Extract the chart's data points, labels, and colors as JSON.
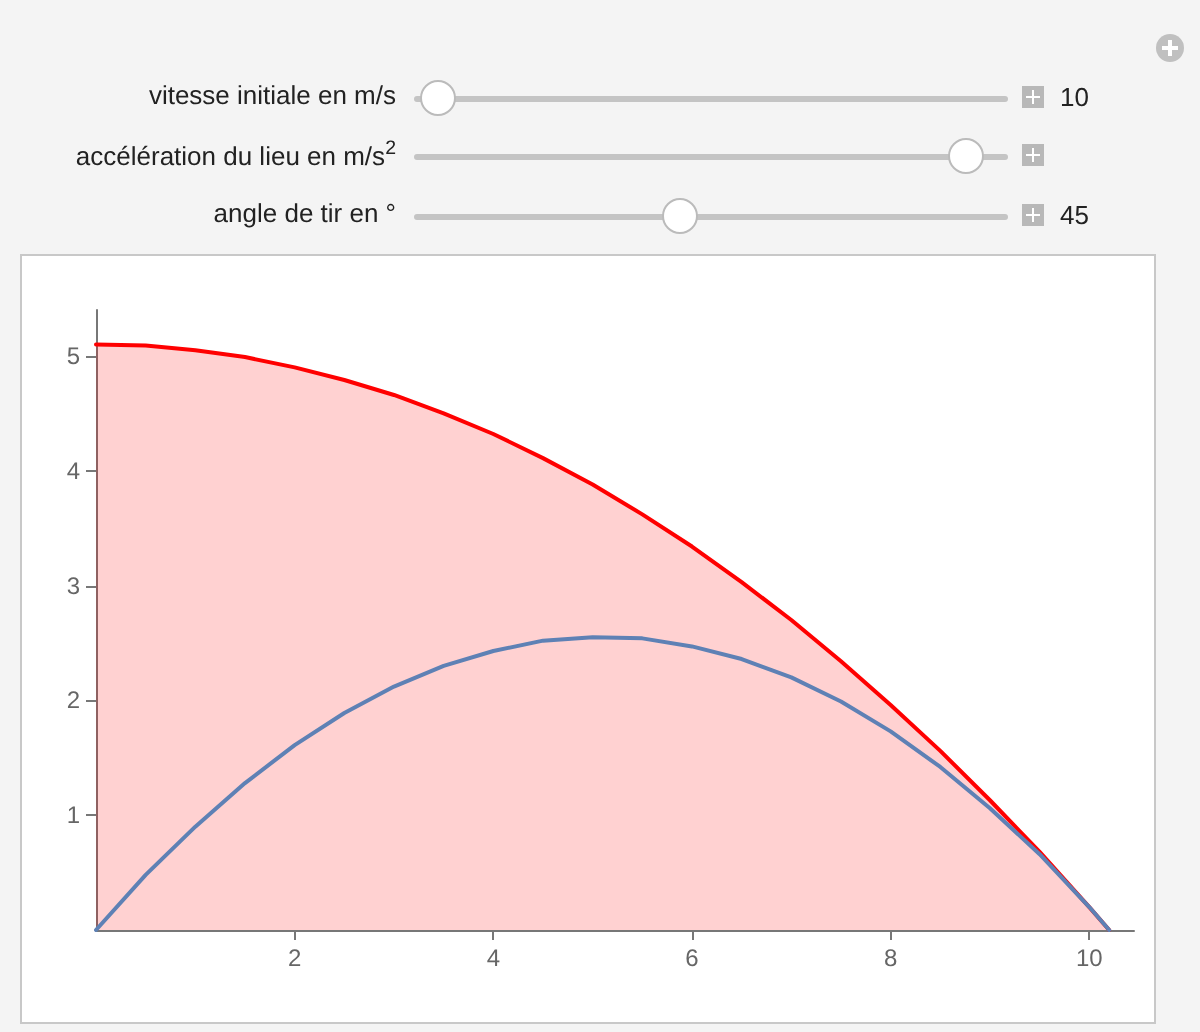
{
  "chart_data": {
    "type": "area",
    "annotations": [
      "vitesse initiale en m/s",
      "10",
      "accélération du lieu en m/s$^{2}$",
      "angle de tir en °",
      "45"
    ],
    "x": [
      0,
      0.5,
      1,
      1.5,
      2,
      2.5,
      3,
      3.5,
      4,
      4.5,
      5,
      5.5,
      6,
      6.5,
      7,
      7.5,
      8,
      8.5,
      9,
      9.5,
      10,
      10.2
    ],
    "series": [
      {
        "color": "#ff0000",
        "values": [
          5.1,
          5.09,
          5.05,
          4.99,
          4.9,
          4.79,
          4.66,
          4.5,
          4.32,
          4.11,
          3.88,
          3.62,
          3.34,
          3.03,
          2.7,
          2.34,
          1.96,
          1.56,
          1.13,
          0.68,
          0.2,
          0
        ]
      },
      {
        "type": "line",
        "color": "#5e81b5",
        "values": [
          0,
          0.48,
          0.9,
          1.28,
          1.61,
          1.89,
          2.12,
          2.3,
          2.43,
          2.52,
          2.55,
          2.54,
          2.47,
          2.36,
          2.2,
          1.99,
          1.73,
          1.42,
          1.06,
          0.66,
          0.2,
          0
        ]
      }
    ],
    "xlim": [
      0,
      10.45
    ],
    "ylim": [
      0,
      5.4
    ],
    "xticks": [
      2,
      4,
      6,
      8,
      10
    ],
    "yticks": [
      1,
      2,
      3,
      4,
      5
    ],
    "grid": false,
    "marker": "none",
    "line_style": "solid"
  }
}
